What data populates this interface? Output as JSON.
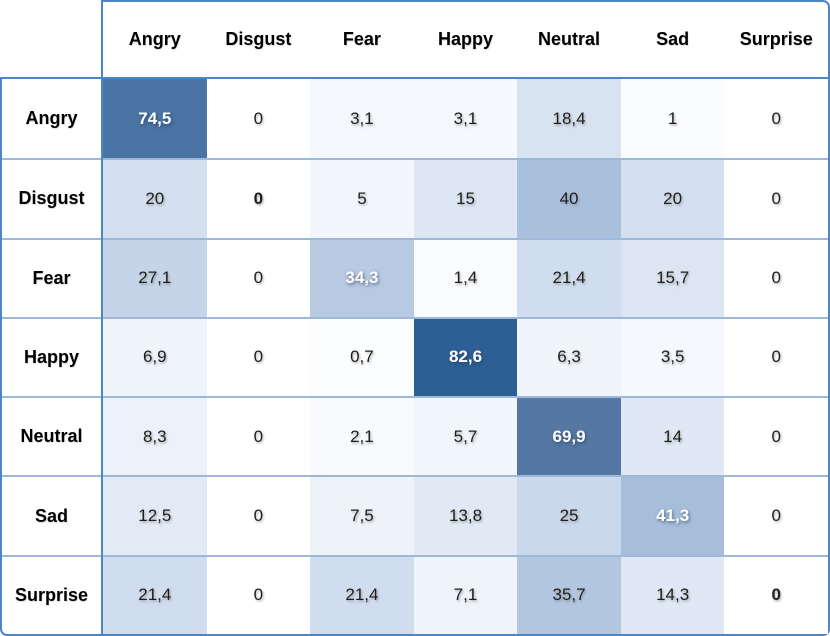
{
  "chart_data": {
    "type": "heatmap",
    "title": "",
    "x_categories": [
      "Angry",
      "Disgust",
      "Fear",
      "Happy",
      "Neutral",
      "Sad",
      "Surprise"
    ],
    "y_categories": [
      "Angry",
      "Disgust",
      "Fear",
      "Happy",
      "Neutral",
      "Sad",
      "Surprise"
    ],
    "values": [
      [
        74.5,
        0,
        3.1,
        3.1,
        18.4,
        1,
        0
      ],
      [
        20,
        0,
        5,
        15,
        40,
        20,
        0
      ],
      [
        27.1,
        0,
        34.3,
        1.4,
        21.4,
        15.7,
        0
      ],
      [
        6.9,
        0,
        0.7,
        82.6,
        6.3,
        3.5,
        0
      ],
      [
        8.3,
        0,
        2.1,
        5.7,
        69.9,
        14,
        0
      ],
      [
        12.5,
        0,
        7.5,
        13.8,
        25,
        41.3,
        0
      ],
      [
        21.4,
        0,
        21.4,
        7.1,
        35.7,
        14.3,
        0
      ]
    ],
    "value_labels": [
      [
        "74,5",
        "0",
        "3,1",
        "3,1",
        "18,4",
        "1",
        "0"
      ],
      [
        "20",
        "0",
        "5",
        "15",
        "40",
        "20",
        "0"
      ],
      [
        "27,1",
        "0",
        "34,3",
        "1,4",
        "21,4",
        "15,7",
        "0"
      ],
      [
        "6,9",
        "0",
        "0,7",
        "82,6",
        "6,3",
        "3,5",
        "0"
      ],
      [
        "8,3",
        "0",
        "2,1",
        "5,7",
        "69,9",
        "14",
        "0"
      ],
      [
        "12,5",
        "0",
        "7,5",
        "13,8",
        "25",
        "41,3",
        "0"
      ],
      [
        "21,4",
        "0",
        "21,4",
        "7,1",
        "35,7",
        "14,3",
        "0"
      ]
    ],
    "fills": [
      [
        "#4a74a4",
        "#ffffff",
        "#f5f8fc",
        "#f5f8fc",
        "#d8e3f1",
        "#fbfcfe",
        "#ffffff"
      ],
      [
        "#d4e0ef",
        "#ffffff",
        "#f2f6fb",
        "#dde7f3",
        "#a9c0dd",
        "#d4e0ef",
        "#ffffff"
      ],
      [
        "#c5d4e9",
        "#ffffff",
        "#b7cae2",
        "#fafbfe",
        "#d0ddee",
        "#dce6f3",
        "#ffffff"
      ],
      [
        "#eff4fa",
        "#ffffff",
        "#fcfdfe",
        "#2e5f94",
        "#f0f5fb",
        "#f5f8fc",
        "#ffffff"
      ],
      [
        "#ecf2f9",
        "#ffffff",
        "#f8fafd",
        "#f1f6fb",
        "#5478a3",
        "#dfe8f4",
        "#ffffff"
      ],
      [
        "#e2eaf5",
        "#ffffff",
        "#eef3fa",
        "#e0e9f4",
        "#cad8eb",
        "#a7bedb",
        "#ffffff"
      ],
      [
        "#d0ddee",
        "#ffffff",
        "#d0ddee",
        "#eef4fa",
        "#b2c6e0",
        "#dfe8f4",
        "#ffffff"
      ]
    ],
    "decimal_separator": ",",
    "legend_position": "none",
    "grid": "horizontal-separators-only",
    "colors": {
      "border_outer": "#4a86c8",
      "border_inner": "#9db8d9",
      "max_fill": "#2e5f94",
      "min_fill": "#ffffff",
      "text_dark": "#1f1f1f",
      "text_light": "#ffffff",
      "header_text": "#000000"
    },
    "white_text_threshold": 30
  }
}
